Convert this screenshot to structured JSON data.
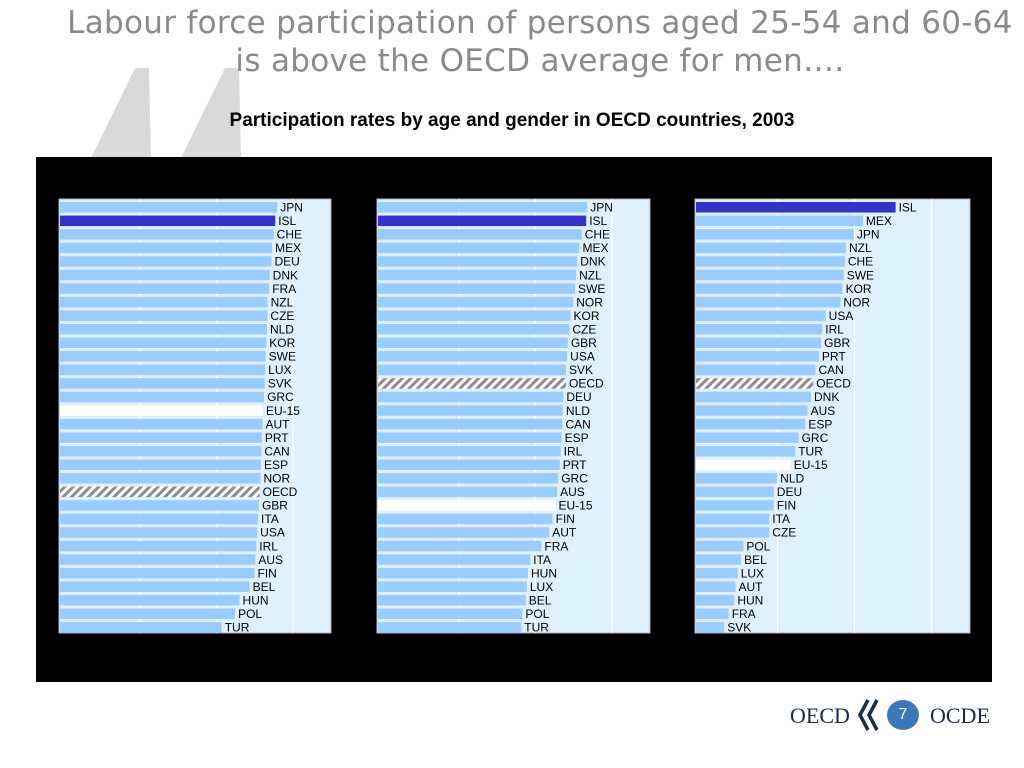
{
  "slide": {
    "title": "Labour force participation of persons aged 25-54 and 60-64 is above the OECD average for men….",
    "page_number": "7"
  },
  "footer": {
    "logo_left": "OECD",
    "logo_right": "OCDE"
  },
  "colors": {
    "bar": "#99ccff",
    "highlight_bar": "#3333cc",
    "eu15_bar": "#ffffff",
    "oecd_hatch": "#999999",
    "panel_bg": "#dff0ff",
    "background": "#000000"
  },
  "chart_data": [
    {
      "type": "bar",
      "orientation": "horizontal",
      "title": "Participation rates by age and gender in OECD countries, 2003",
      "highlight": "ISL",
      "hatched": "OECD",
      "white": "EU-15",
      "categories": [
        "JPN",
        "ISL",
        "CHE",
        "MEX",
        "DEU",
        "DNK",
        "FRA",
        "NZL",
        "CZE",
        "NLD",
        "KOR",
        "SWE",
        "LUX",
        "SVK",
        "GRC",
        "EU-15",
        "AUT",
        "PRT",
        "CAN",
        "ESP",
        "NOR",
        "OECD",
        "GBR",
        "ITA",
        "USA",
        "IRL",
        "AUS",
        "FIN",
        "BEL",
        "HUN",
        "POL",
        "TUR"
      ],
      "values": [
        97.4,
        96.5,
        95.8,
        95.1,
        94.8,
        94.0,
        93.8,
        93.1,
        93.0,
        92.8,
        92.5,
        92.2,
        92.0,
        91.8,
        91.5,
        91.0,
        90.8,
        90.5,
        90.3,
        90.1,
        89.9,
        89.5,
        89.2,
        88.8,
        88.4,
        88.0,
        87.6,
        87.2,
        85.0,
        80.5,
        78.5,
        72.5
      ]
    },
    {
      "type": "bar",
      "orientation": "horizontal",
      "highlight": "ISL",
      "hatched": "OECD",
      "white": "EU-15",
      "categories": [
        "JPN",
        "ISL",
        "CHE",
        "MEX",
        "DNK",
        "NZL",
        "SWE",
        "NOR",
        "KOR",
        "CZE",
        "GBR",
        "USA",
        "SVK",
        "OECD",
        "DEU",
        "NLD",
        "CAN",
        "ESP",
        "IRL",
        "PRT",
        "GRC",
        "AUS",
        "EU-15",
        "FIN",
        "AUT",
        "FRA",
        "ITA",
        "HUN",
        "LUX",
        "BEL",
        "POL",
        "TUR"
      ],
      "values": [
        93.5,
        93.0,
        91.0,
        90.0,
        89.0,
        88.5,
        88.0,
        87.2,
        86.0,
        85.5,
        84.8,
        84.5,
        84.0,
        84.0,
        82.8,
        82.6,
        82.4,
        82.0,
        81.6,
        81.2,
        80.5,
        80.0,
        79.3,
        78.0,
        76.5,
        73.0,
        68.0,
        67.0,
        66.5,
        66.0,
        64.5,
        64.0
      ]
    },
    {
      "type": "bar",
      "orientation": "horizontal",
      "highlight": "ISL",
      "hatched": "OECD",
      "white": "EU-15",
      "categories": [
        "ISL",
        "MEX",
        "JPN",
        "NZL",
        "CHE",
        "SWE",
        "KOR",
        "NOR",
        "USA",
        "IRL",
        "GBR",
        "PRT",
        "CAN",
        "OECD",
        "DNK",
        "AUS",
        "ESP",
        "GRC",
        "TUR",
        "EU-15",
        "NLD",
        "DEU",
        "FIN",
        "ITA",
        "CZE",
        "POL",
        "BEL",
        "LUX",
        "AUT",
        "HUN",
        "FRA",
        "SVK"
      ],
      "values": [
        88.5,
        74.0,
        70.0,
        66.5,
        66.0,
        65.5,
        65.0,
        64.0,
        57.5,
        56.0,
        55.5,
        54.5,
        53.0,
        52.0,
        51.0,
        49.5,
        48.5,
        45.5,
        44.0,
        42.0,
        36.0,
        34.5,
        34.5,
        32.5,
        32.5,
        21.0,
        20.0,
        18.5,
        17.5,
        17.0,
        14.5,
        12.5
      ]
    }
  ]
}
